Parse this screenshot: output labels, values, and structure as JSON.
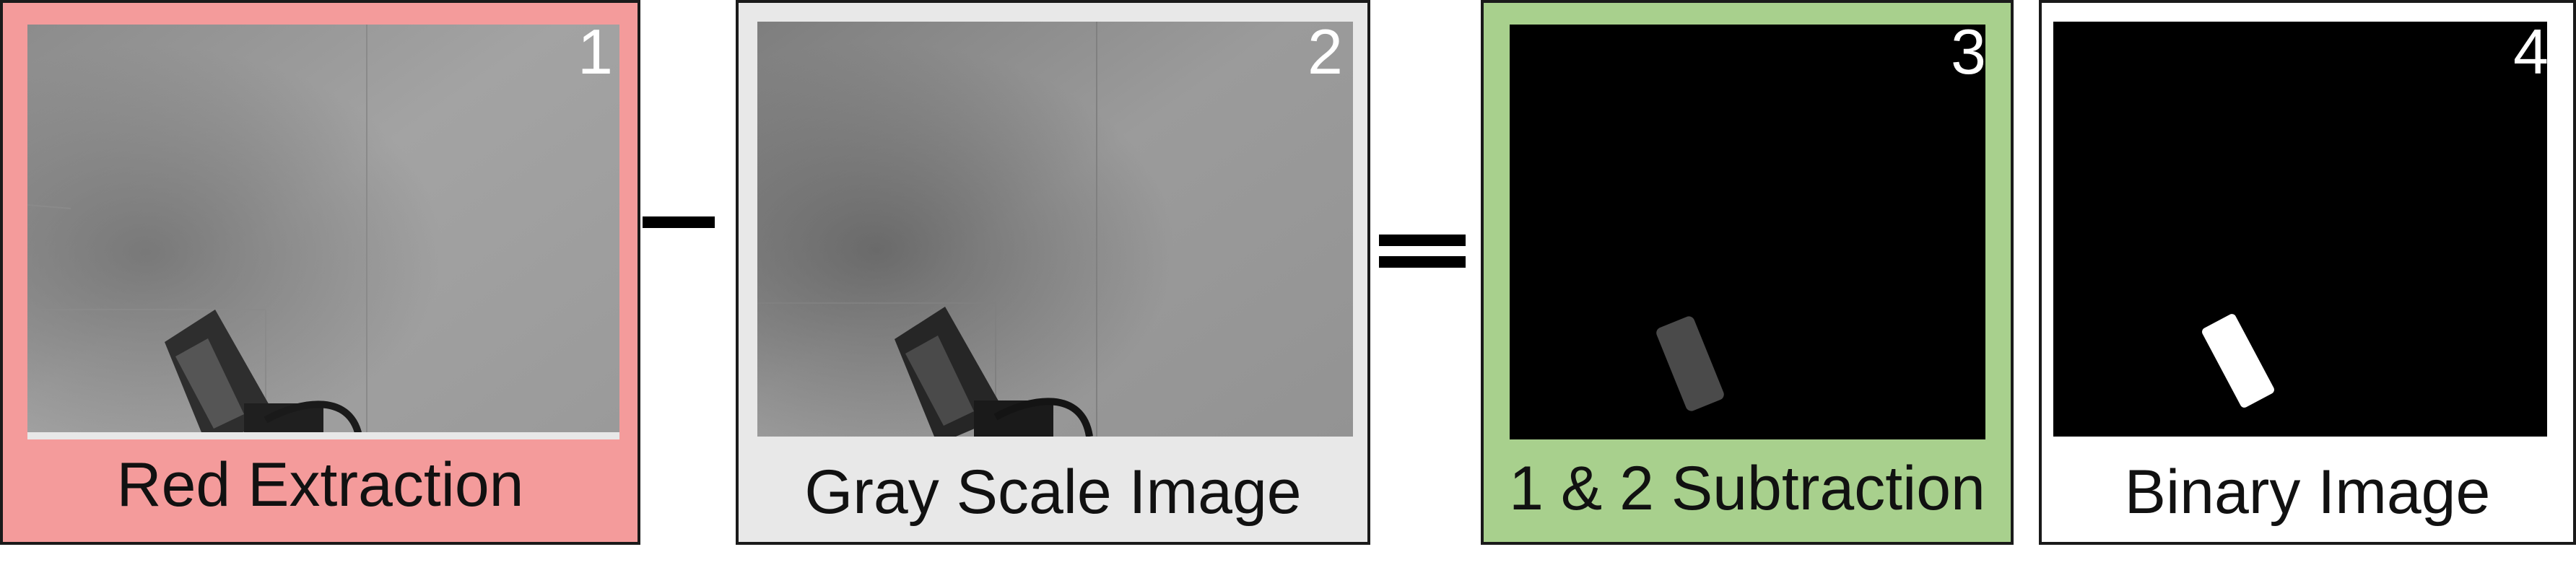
{
  "colors": {
    "panel1_bg": "#f49b9b",
    "panel2_bg": "#e8e8e8",
    "panel3_bg": "#a8d08d",
    "panel4_bg": "#ffffff"
  },
  "panels": [
    {
      "number": "1",
      "label": "Red Extraction"
    },
    {
      "number": "2",
      "label": "Gray Scale Image"
    },
    {
      "number": "3",
      "label": "1 & 2 Subtraction"
    },
    {
      "number": "4",
      "label": "Binary Image"
    }
  ],
  "operators": {
    "minus": "minus-sign",
    "equals": "equals-sign"
  }
}
